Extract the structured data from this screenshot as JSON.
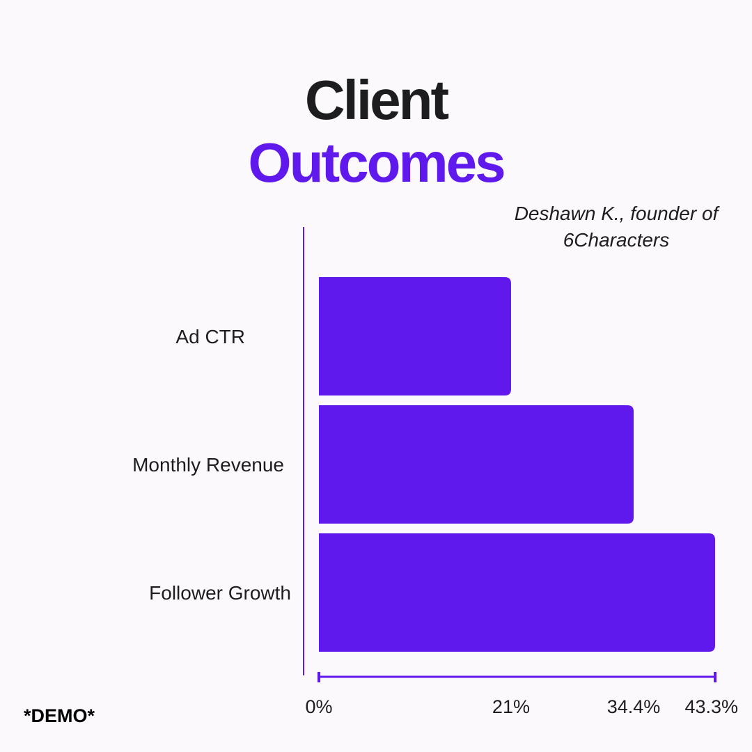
{
  "page": {
    "title_line1": "Client",
    "title_line2": "Outcomes",
    "subtitle": "Deshawn K., founder of 6Characters",
    "footnote": "*DEMO*"
  },
  "colors": {
    "accent": "#6019ed",
    "text": "#1d1d1f",
    "background": "#fcf9fd"
  },
  "chart_data": {
    "type": "bar",
    "orientation": "horizontal",
    "categories": [
      "Ad CTR",
      "Monthly Revenue",
      "Follower Growth"
    ],
    "values": [
      21,
      34.4,
      43.3
    ],
    "xlim": [
      0,
      43.3
    ],
    "x_ticks": [
      0,
      21,
      34.4,
      43.3
    ],
    "x_tick_labels": [
      "0%",
      "21%",
      "34.4%",
      "43.3%"
    ],
    "grid": false,
    "legend": "none"
  }
}
